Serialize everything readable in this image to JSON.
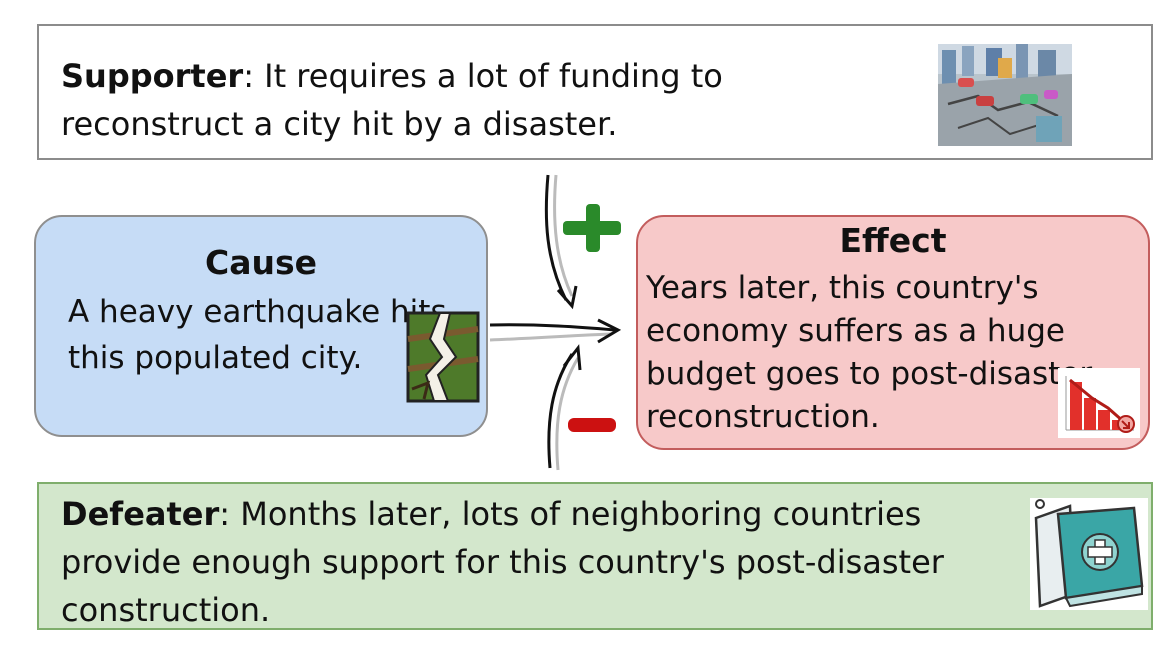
{
  "supporter": {
    "label": "Supporter",
    "text": ": It requires a lot of funding to reconstruct a city hit by a disaster.",
    "image": "city-disaster-icon"
  },
  "cause": {
    "title": "Cause",
    "text": "A heavy earthquake hits this populated city.",
    "image": "earthquake-icon"
  },
  "effect": {
    "title": "Effect",
    "text": "Years later, this country's economy suffers as a huge budget goes to post-disaster reconstruction.",
    "image": "declining-chart-icon"
  },
  "defeater": {
    "label": "Defeater",
    "text": ": Months later, lots of neighboring countries provide enough support for this country's post-disaster construction.",
    "image": "medical-kit-icon"
  },
  "signs": {
    "plus": "+",
    "minus": "−"
  },
  "colors": {
    "supporter_border": "#8c8c8c",
    "defeater_bg": "#d3e7cc",
    "defeater_border": "#7fae6c",
    "cause_bg": "#c6dcf6",
    "effect_bg": "#f7c9c9",
    "effect_border": "#c35d5d",
    "plus": "#2a8a2a",
    "minus": "#cc1111"
  }
}
